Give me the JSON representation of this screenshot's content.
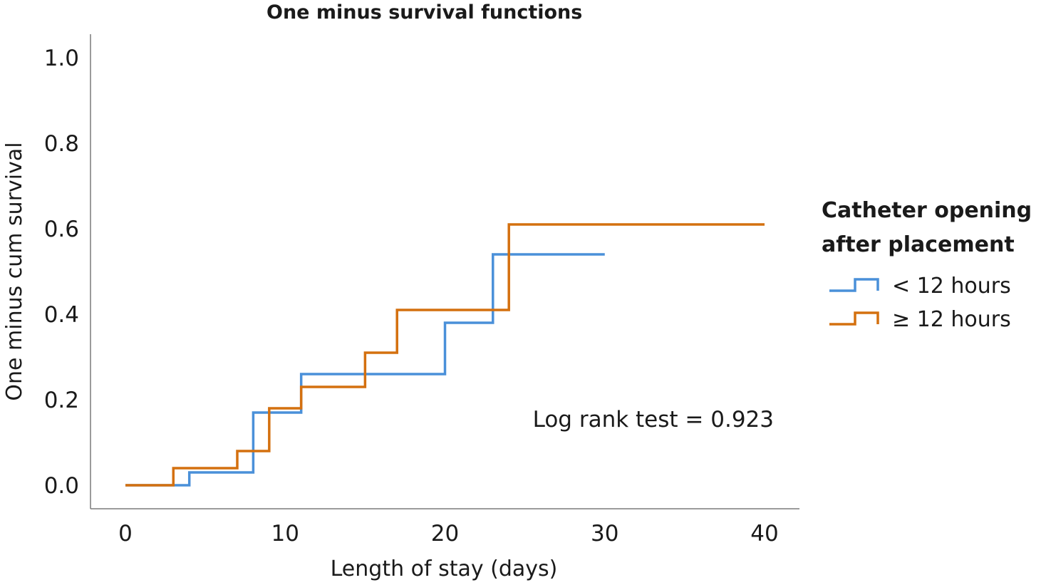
{
  "chart_data": {
    "type": "line",
    "step": true,
    "title": "One minus survival functions",
    "xlabel": "Length of stay (days)",
    "ylabel": "One minus cum survival",
    "xlim": [
      0,
      40
    ],
    "ylim": [
      0.0,
      1.0
    ],
    "xticks": [
      0,
      10,
      20,
      30,
      40
    ],
    "xtick_labels": [
      "0",
      "10",
      "20",
      "30",
      "40"
    ],
    "yticks": [
      0.0,
      0.2,
      0.4,
      0.6,
      0.8,
      1.0
    ],
    "ytick_labels": [
      "0.0",
      "0.2",
      "0.4",
      "0.6",
      "0.8",
      "1.0"
    ],
    "grid": false,
    "legend_title": "Catheter opening after placement",
    "legend_position": "right",
    "annotation": "Log rank test = 0.923",
    "series": [
      {
        "name": "< 12 hours",
        "color": "#4a90d9",
        "x": [
          0,
          4,
          8,
          11,
          20,
          23,
          30
        ],
        "y": [
          0.0,
          0.03,
          0.17,
          0.26,
          0.38,
          0.54,
          0.54
        ]
      },
      {
        "name": "≥ 12 hours",
        "color": "#d4700f",
        "x": [
          0,
          3,
          7,
          9,
          11,
          15,
          17,
          24,
          40
        ],
        "y": [
          0.0,
          0.04,
          0.08,
          0.18,
          0.23,
          0.31,
          0.41,
          0.61,
          0.61
        ]
      }
    ]
  }
}
